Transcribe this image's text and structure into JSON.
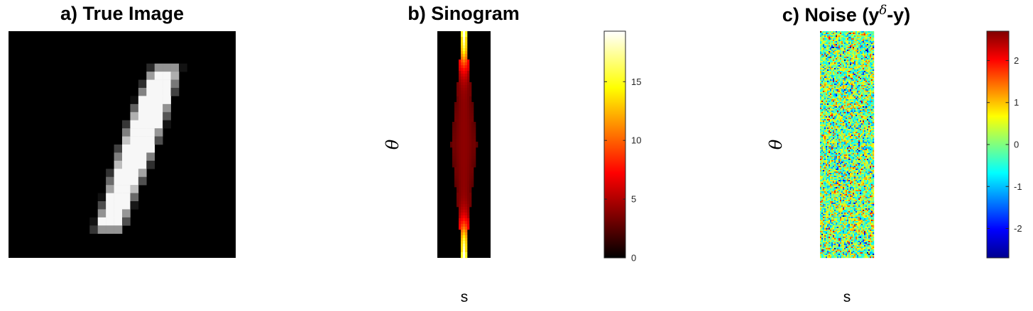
{
  "panels": [
    {
      "title": "a) True Image"
    },
    {
      "title": "b) Sinogram",
      "ylabel": "θ",
      "xlabel": "s"
    },
    {
      "title_main": "c) Noise (y",
      "title_sup": "δ",
      "title_end": "-y)",
      "ylabel": "θ",
      "xlabel": "s"
    }
  ],
  "chart_data": [
    {
      "type": "heatmap",
      "title": "a) True Image",
      "colormap": "gray",
      "grid": "none",
      "description_values": "28x28 handwritten digit '1' image; near-white stroke from top-right to bottom-left on black background"
    },
    {
      "type": "heatmap",
      "title": "b) Sinogram",
      "xlabel": "s",
      "ylabel": "θ",
      "colormap": "hot",
      "clim": [
        0,
        19.3
      ],
      "colorbar_ticks": [
        0,
        5,
        10,
        15
      ],
      "colorbar_tick_labels": [
        "0",
        "5",
        "10",
        "15"
      ]
    },
    {
      "type": "heatmap",
      "title": "c) Noise (yδ-y)",
      "xlabel": "s",
      "ylabel": "θ",
      "colormap": "jet",
      "clim": [
        -2.7,
        2.7
      ],
      "colorbar_ticks": [
        -2,
        -1,
        0,
        1,
        2
      ],
      "colorbar_tick_labels": [
        "-2",
        "-1",
        "0",
        "1",
        "2"
      ]
    }
  ]
}
